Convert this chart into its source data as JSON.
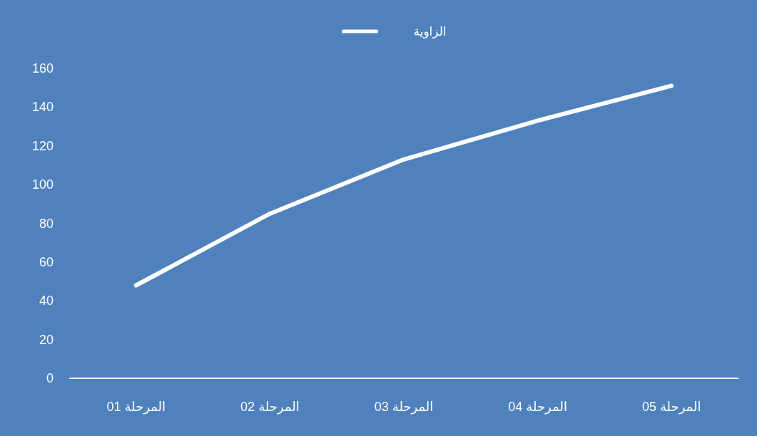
{
  "chart_data": {
    "type": "line",
    "categories": [
      "المرحلة 01",
      "المرحلة 02",
      "المرحلة 03",
      "المرحلة 04",
      "المرحلة 05"
    ],
    "series": [
      {
        "name": "الزاوية",
        "color": "#ffffff",
        "values": [
          48,
          85,
          113,
          133,
          151
        ]
      }
    ],
    "ylim": [
      0,
      160
    ],
    "yticks": [
      0,
      20,
      40,
      60,
      80,
      100,
      120,
      140,
      160
    ],
    "grid": false,
    "legend": "top",
    "marker": "none",
    "line_style": "solid"
  }
}
